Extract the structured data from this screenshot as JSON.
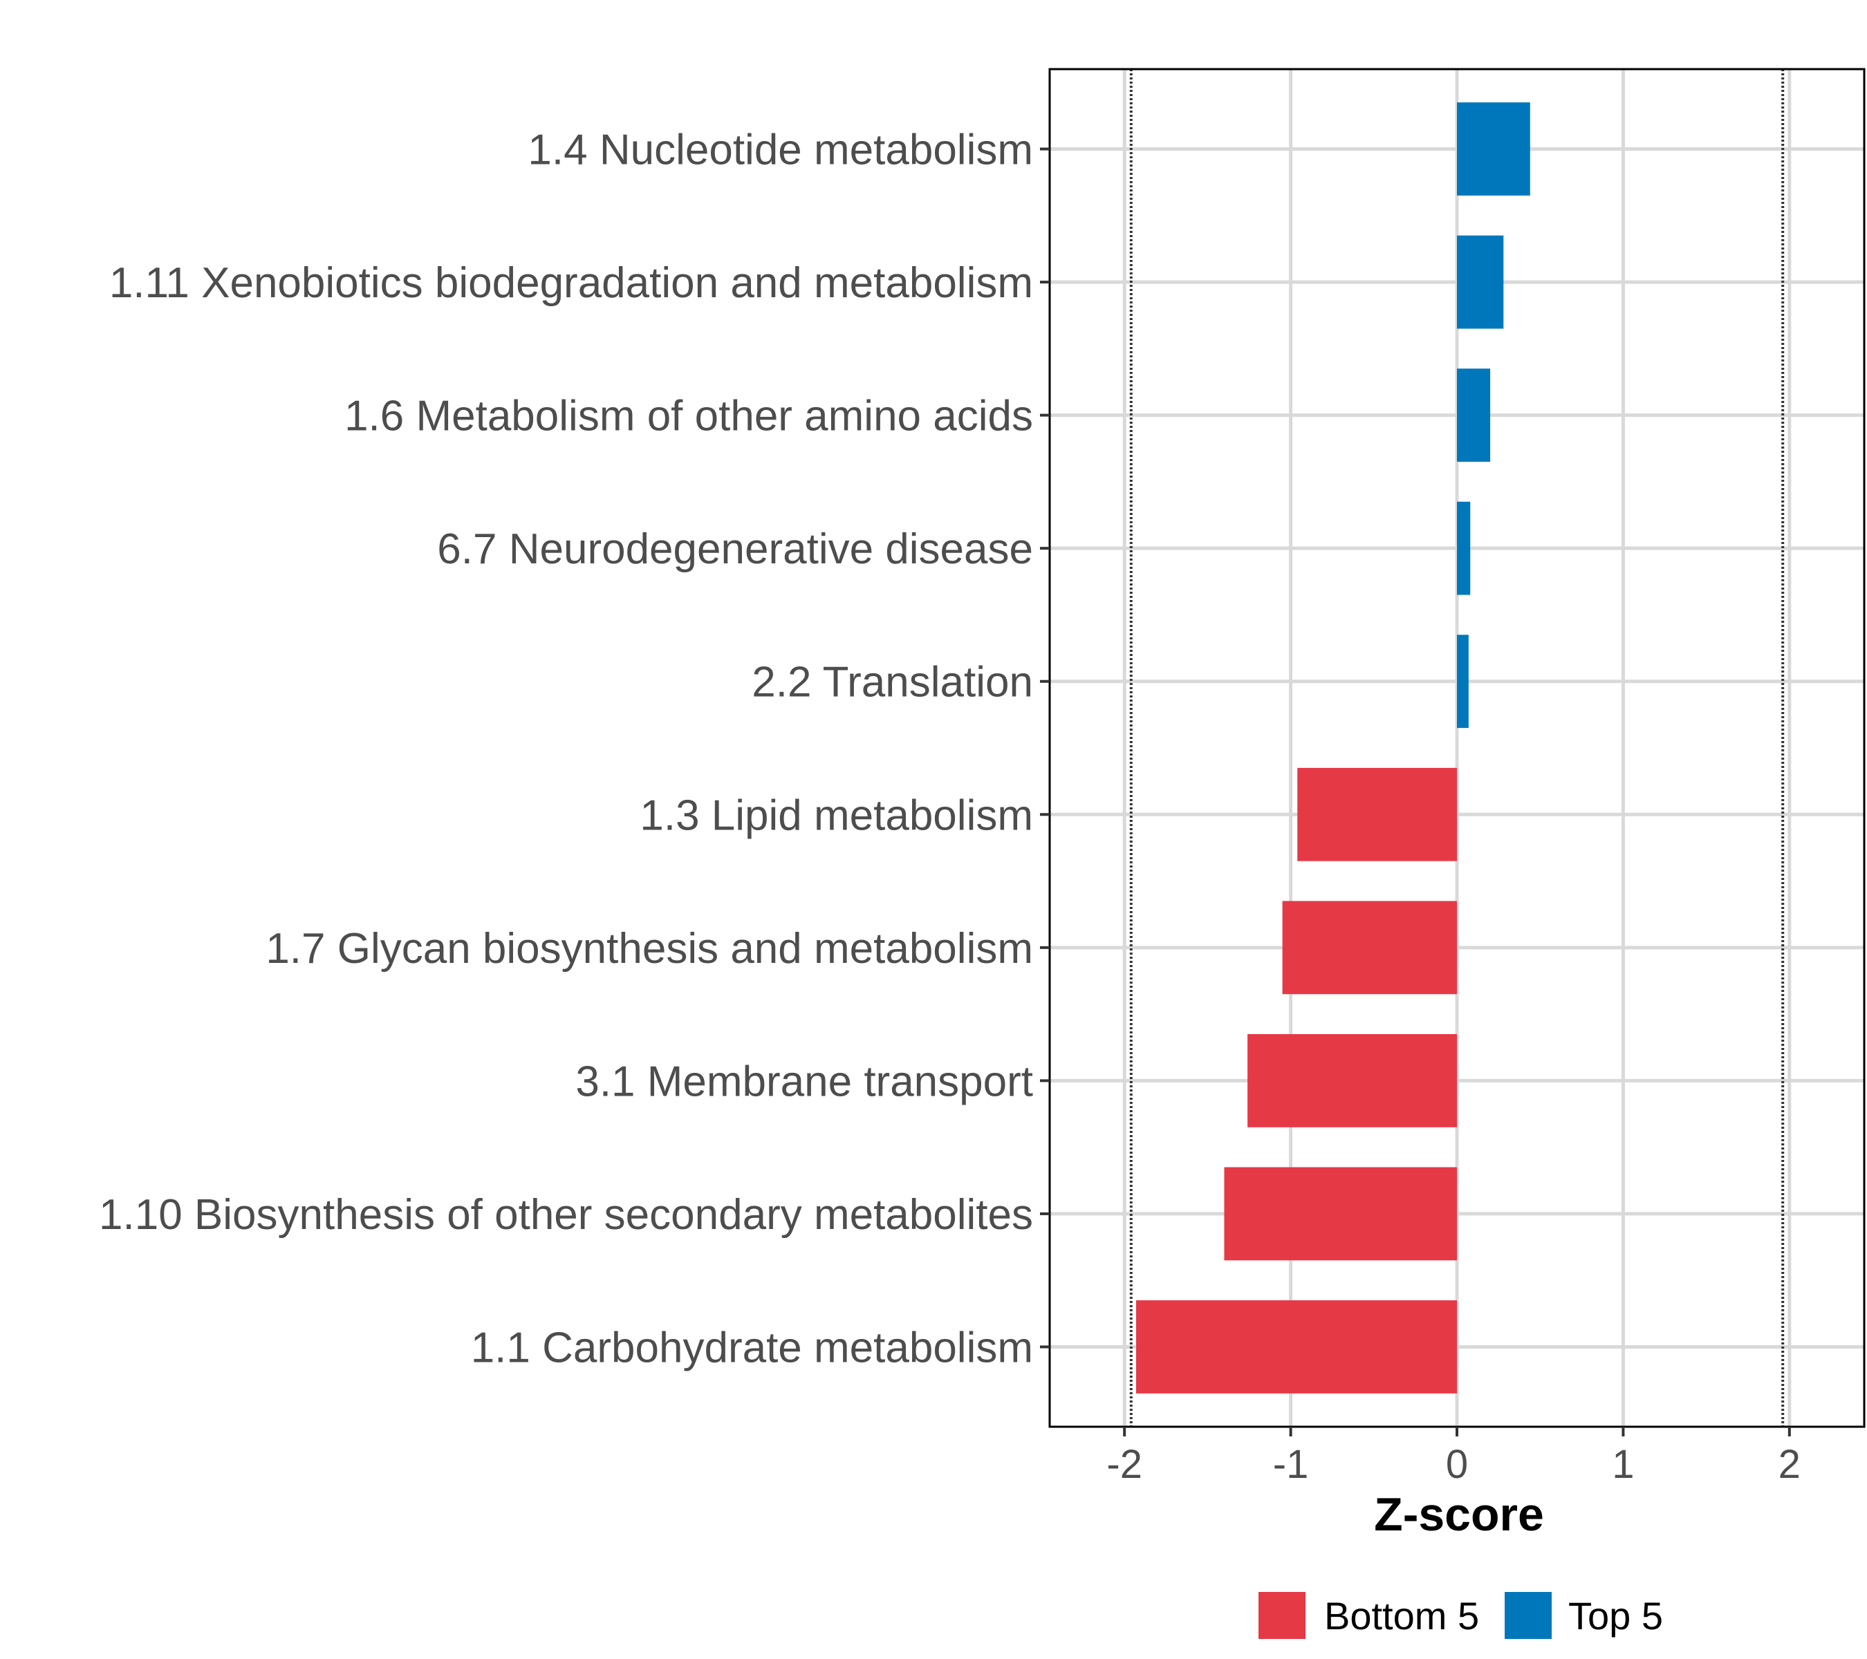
{
  "chart_data": {
    "type": "bar",
    "orientation": "horizontal",
    "title": "",
    "xlabel": "Z-score",
    "ylabel": "",
    "xlim": [
      -2.45,
      2.45
    ],
    "xticks": [
      -2,
      -1,
      0,
      1,
      2
    ],
    "xtick_labels": [
      "-2",
      "-1",
      "0",
      "1",
      "2"
    ],
    "reference_lines": [
      -1.96,
      1.96
    ],
    "grid": true,
    "categories": [
      "1.4 Nucleotide metabolism",
      "1.11 Xenobiotics biodegradation and metabolism",
      "1.6 Metabolism of other amino acids",
      "6.7 Neurodegenerative disease",
      "2.2 Translation",
      "1.3 Lipid metabolism",
      "1.7 Glycan biosynthesis and metabolism",
      "3.1 Membrane transport",
      "1.10 Biosynthesis of other secondary metabolites",
      "1.1 Carbohydrate metabolism"
    ],
    "values": [
      0.44,
      0.28,
      0.2,
      0.08,
      0.07,
      -0.96,
      -1.05,
      -1.26,
      -1.4,
      -1.93
    ],
    "groups": [
      "Top 5",
      "Top 5",
      "Top 5",
      "Top 5",
      "Top 5",
      "Bottom 5",
      "Bottom 5",
      "Bottom 5",
      "Bottom 5",
      "Bottom 5"
    ],
    "legend": {
      "position": "bottom",
      "entries": [
        {
          "label": "Bottom 5",
          "color": "#E63946"
        },
        {
          "label": "Top 5",
          "color": "#0077BB"
        }
      ]
    }
  }
}
